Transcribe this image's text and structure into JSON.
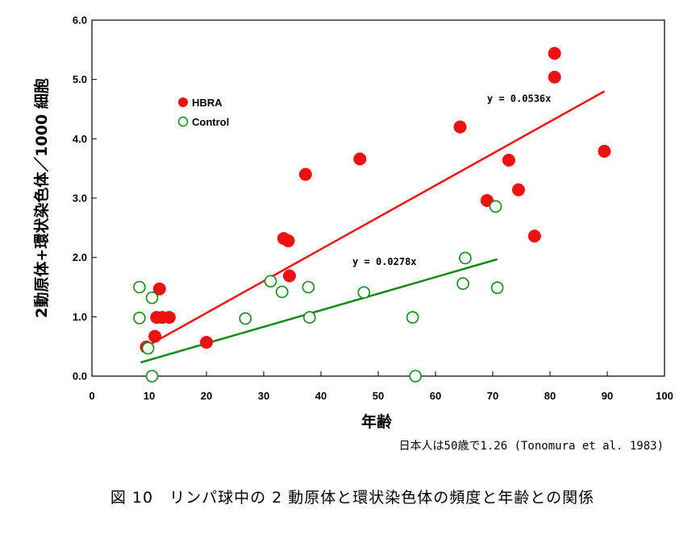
{
  "chart_data": {
    "type": "scatter",
    "xlabel": "年齢",
    "ylabel": "2動原体+環状染色体／1000 細胞",
    "xlim": [
      0,
      100
    ],
    "ylim": [
      0,
      6
    ],
    "x_ticks": [
      "0",
      "10",
      "20",
      "30",
      "40",
      "50",
      "60",
      "70",
      "80",
      "90",
      "100"
    ],
    "y_ticks": [
      "0.0",
      "1.0",
      "2.0",
      "3.0",
      "4.0",
      "5.0",
      "6.0"
    ],
    "grid": false,
    "legend_position": "top-left",
    "series": [
      {
        "name": "HBRA",
        "marker": "filled-circle",
        "color": "#ee1111",
        "points": [
          [
            9.5,
            0.49
          ],
          [
            11,
            0.67
          ],
          [
            11.3,
            0.99
          ],
          [
            11.8,
            1.47
          ],
          [
            12.3,
            0.99
          ],
          [
            13.5,
            0.99
          ],
          [
            20,
            0.57
          ],
          [
            33.5,
            2.32
          ],
          [
            34.3,
            2.28
          ],
          [
            34.5,
            1.69
          ],
          [
            37.3,
            3.4
          ],
          [
            46.8,
            3.66
          ],
          [
            64.3,
            4.2
          ],
          [
            69,
            2.96
          ],
          [
            72.8,
            3.64
          ],
          [
            74.5,
            3.14
          ],
          [
            77.3,
            2.36
          ],
          [
            80.8,
            5.44
          ],
          [
            80.8,
            5.04
          ],
          [
            89.5,
            3.79
          ]
        ]
      },
      {
        "name": "Control",
        "marker": "open-circle",
        "color": "#118811",
        "points": [
          [
            8.3,
            1.5
          ],
          [
            8.3,
            0.98
          ],
          [
            9.8,
            0.47
          ],
          [
            10.5,
            1.32
          ],
          [
            10.5,
            0.0
          ],
          [
            26.8,
            0.97
          ],
          [
            31.2,
            1.6
          ],
          [
            33.2,
            1.42
          ],
          [
            37.8,
            1.5
          ],
          [
            38,
            0.99
          ],
          [
            47.5,
            1.41
          ],
          [
            56,
            0.99
          ],
          [
            56.5,
            0.0
          ],
          [
            64.8,
            1.56
          ],
          [
            65.2,
            1.99
          ],
          [
            70.5,
            2.86
          ],
          [
            70.8,
            1.49
          ]
        ]
      }
    ],
    "trendlines": [
      {
        "series": "HBRA",
        "color": "#ee1111",
        "from": [
          9.5,
          0.5
        ],
        "to": [
          89.5,
          4.8
        ],
        "label": "y = 0.0536x",
        "label_at": [
          69,
          4.62
        ]
      },
      {
        "series": "Control",
        "color": "#118811",
        "from": [
          8.5,
          0.23
        ],
        "to": [
          70.8,
          1.97
        ],
        "label": "y = 0.0278x",
        "label_at": [
          45.5,
          1.87
        ]
      }
    ]
  },
  "note": "日本人は50歳で1.26 (Tonomura et al. 1983)",
  "caption": "図 10　リンパ球中の 2 動原体と環状染色体の頻度と年齢との関係"
}
